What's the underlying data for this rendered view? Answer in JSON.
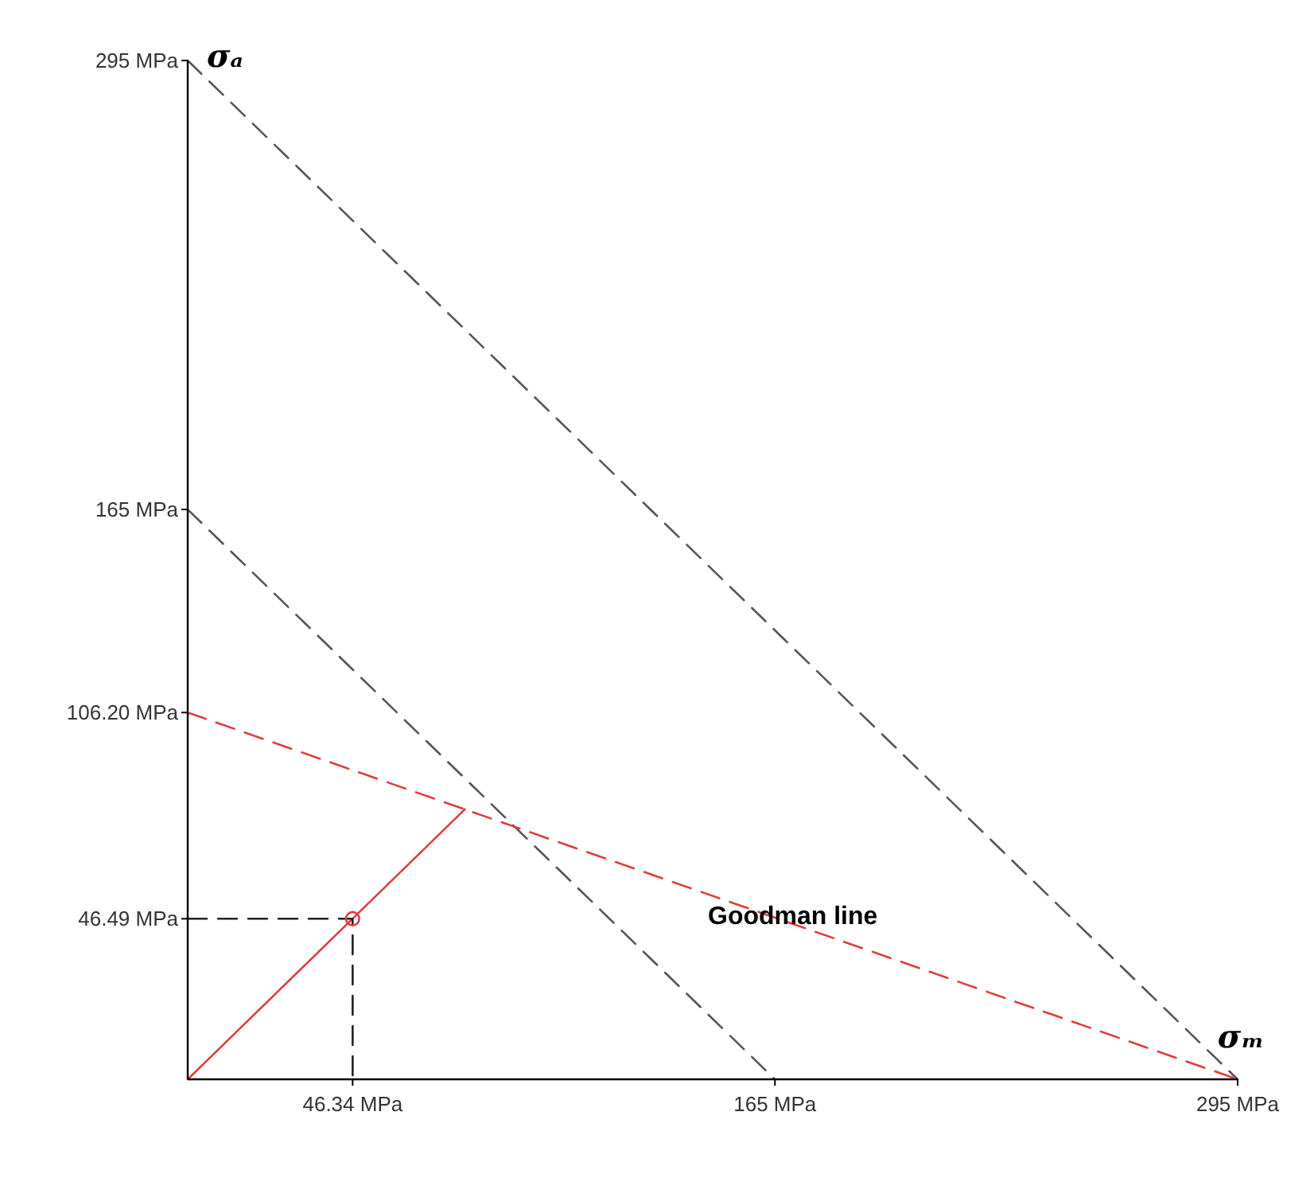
{
  "chart_data": {
    "type": "line",
    "xlabel": "σₘ",
    "ylabel": "σₐ",
    "xlim": [
      0,
      295
    ],
    "ylim": [
      0,
      295
    ],
    "xticks": [
      {
        "value": 46.34,
        "label": "46.34 MPa"
      },
      {
        "value": 165,
        "label": "165 MPa"
      },
      {
        "value": 295,
        "label": "295 MPa"
      }
    ],
    "yticks": [
      {
        "value": 46.49,
        "label": "46.49 MPa"
      },
      {
        "value": 106.2,
        "label": "106.20 MPa"
      },
      {
        "value": 165,
        "label": "165 MPa"
      },
      {
        "value": 295,
        "label": "295 MPa"
      }
    ],
    "grid": false,
    "series": [
      {
        "color": "#555555",
        "line_style": "dashed",
        "marker": "none",
        "x": [
          0,
          295
        ],
        "values": [
          295,
          0
        ]
      },
      {
        "color": "#555555",
        "line_style": "dashed",
        "marker": "none",
        "x": [
          0,
          165
        ],
        "values": [
          165,
          0
        ]
      },
      {
        "color": "#e03c3c",
        "line_style": "dashed",
        "marker": "none",
        "x": [
          0,
          295
        ],
        "values": [
          106.2,
          0
        ]
      },
      {
        "color": "#e03c3c",
        "line_style": "solid",
        "marker": "none",
        "x": [
          0,
          77.9
        ],
        "values": [
          0,
          78.2
        ]
      },
      {
        "color": "#222222",
        "line_style": "dashed",
        "marker": "none",
        "x": [
          0,
          46.34,
          46.34
        ],
        "values": [
          46.49,
          46.49,
          0
        ]
      },
      {
        "type": "scatter",
        "color": "#e03c3c",
        "marker": "circle",
        "x": [
          46.34
        ],
        "values": [
          46.49
        ]
      }
    ],
    "annotations": [
      {
        "text": "Goodman line",
        "x": 170,
        "y": 45
      }
    ]
  }
}
